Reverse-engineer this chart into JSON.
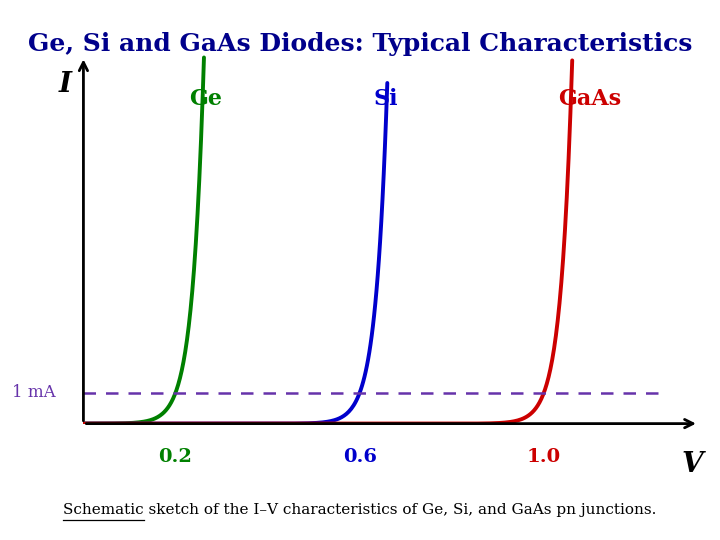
{
  "title": "Ge, Si and GaAs Diodes: Typical Characteristics",
  "title_color": "#00008B",
  "title_fontsize": 18,
  "background_color": "#ffffff",
  "curves": [
    {
      "label": "Ge",
      "color": "#008000",
      "V0": 0.2,
      "scale": 0.012
    },
    {
      "label": "Si",
      "color": "#0000CC",
      "V0": 0.6,
      "scale": 0.012
    },
    {
      "label": "GaAs",
      "color": "#CC0000",
      "V0": 1.0,
      "scale": 0.012
    }
  ],
  "ref_current": 1.0,
  "ref_label": "1 mA",
  "ref_color": "#6633AA",
  "xlabel": "V",
  "ylabel": "I",
  "xlim": [
    0,
    1.35
  ],
  "ylim": [
    0,
    12
  ],
  "voltage_labels": [
    {
      "v": 0.2,
      "label": "0.2",
      "color": "#008000"
    },
    {
      "v": 0.6,
      "label": "0.6",
      "color": "#0000CC"
    },
    {
      "v": 1.0,
      "label": "1.0",
      "color": "#CC0000"
    }
  ],
  "caption": "Schematic sketch of the I–V characteristics of Ge, Si, and GaAs pn junctions.",
  "caption_underline": "Schematic"
}
